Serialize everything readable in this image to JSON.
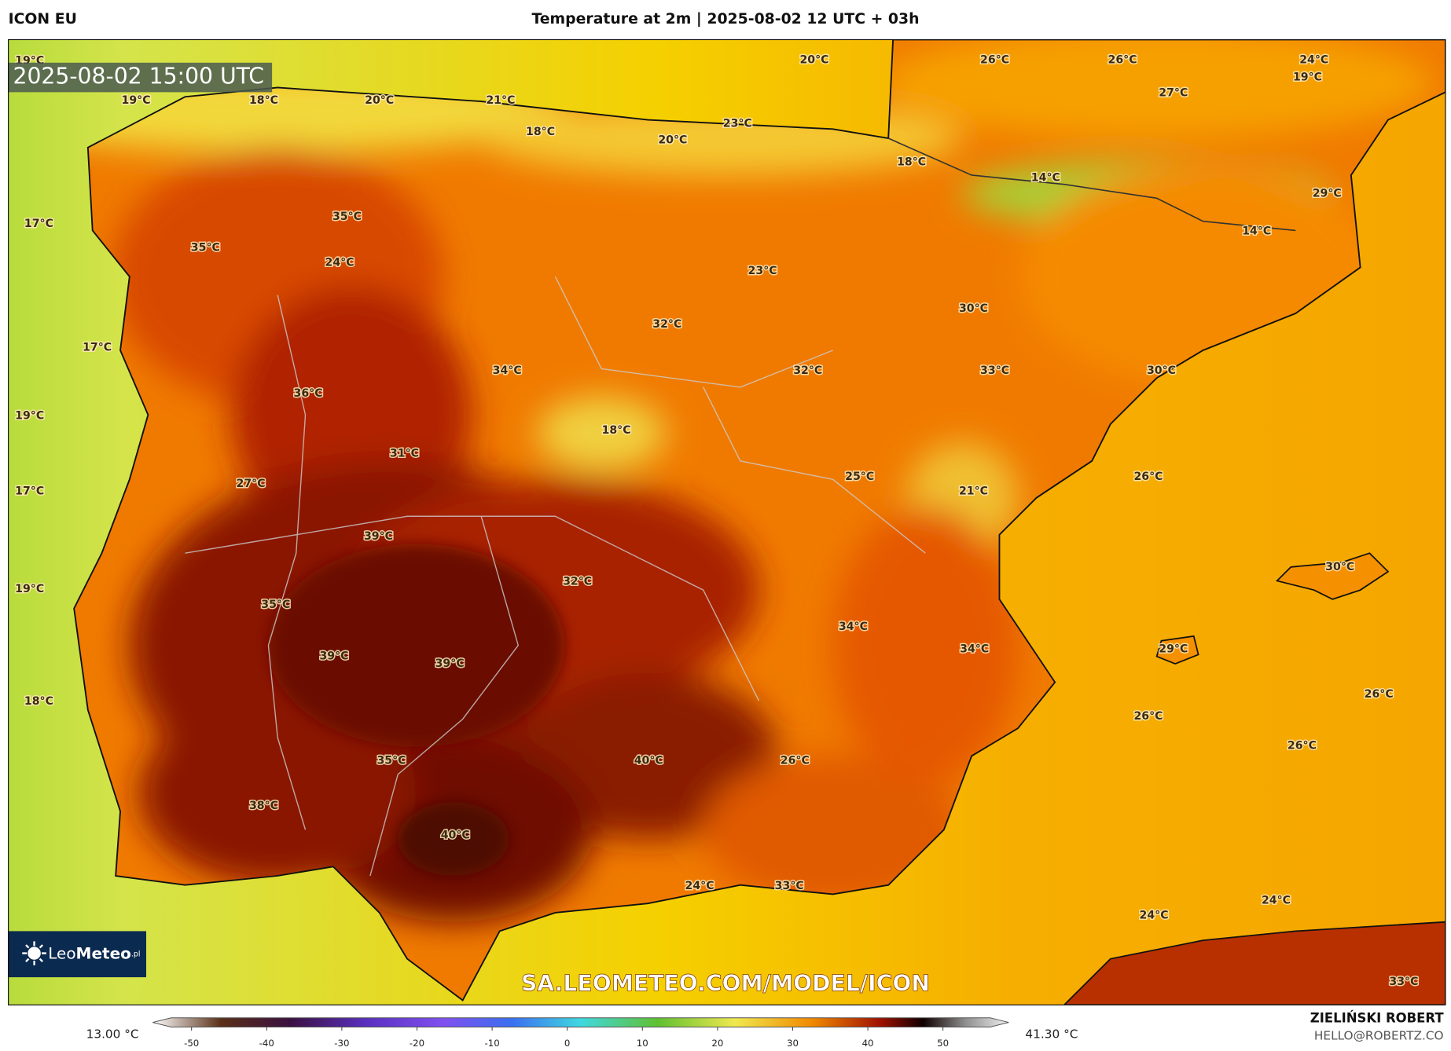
{
  "header": {
    "model": "ICON EU",
    "title": "Temperature at 2m | 2025-08-02 12 UTC + 03h",
    "author": "ZIELIŃSKI ROBERT",
    "contact": "HELLO@ROBERTZ.CO"
  },
  "map": {
    "timestamp": "2025-08-02 15:00 UTC",
    "watermark": "SA.LEOMETEO.COM/MODEL/ICON",
    "logo": {
      "light": "Leo",
      "bold": "Meteo",
      "suffix": ".pl"
    },
    "labels": [
      "19°C",
      "19°C",
      "18°C",
      "20°C",
      "21°C",
      "20°C",
      "26°C",
      "26°C",
      "24°C",
      "19°C",
      "27°C",
      "18°C",
      "20°C",
      "23°C",
      "18°C",
      "14°C",
      "29°C",
      "17°C",
      "35°C",
      "35°C",
      "14°C",
      "24°C",
      "23°C",
      "30°C",
      "32°C",
      "17°C",
      "34°C",
      "32°C",
      "33°C",
      "30°C",
      "36°C",
      "19°C",
      "18°C",
      "31°C",
      "25°C",
      "26°C",
      "27°C",
      "17°C",
      "21°C",
      "39°C",
      "30°C",
      "32°C",
      "19°C",
      "35°C",
      "34°C",
      "34°C",
      "29°C",
      "39°C",
      "39°C",
      "26°C",
      "18°C",
      "26°C",
      "26°C",
      "35°C",
      "40°C",
      "26°C",
      "38°C",
      "40°C",
      "24°C",
      "33°C",
      "24°C",
      "24°C",
      "33°C"
    ]
  },
  "colorbar": {
    "min": "13.00 °C",
    "max": "41.30 °C",
    "ticks": [
      -50,
      -40,
      -30,
      -20,
      -10,
      0,
      10,
      20,
      30,
      40,
      50
    ]
  }
}
